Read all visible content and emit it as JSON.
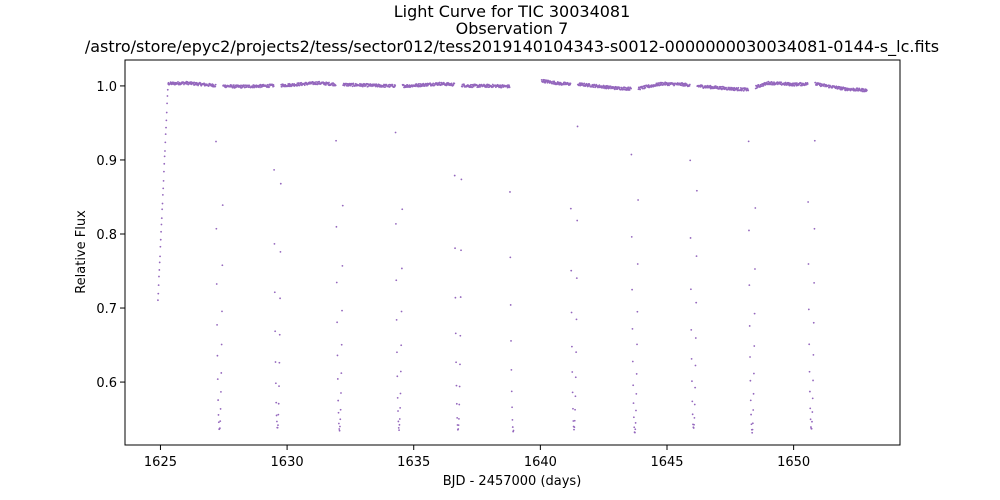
{
  "chart_data": {
    "type": "scatter",
    "title_lines": [
      "Light Curve for TIC 30034081",
      "Observation 7",
      "/astro/store/epyc2/projects2/tess/sector012/tess2019140104343-s0012-0000000030034081-0144-s_lc.fits"
    ],
    "xlabel": "BJD - 2457000 (days)",
    "ylabel": "Relative Flux",
    "xlim": [
      1623.6,
      1654.2
    ],
    "ylim": [
      0.515,
      1.035
    ],
    "xticks": [
      1625,
      1630,
      1635,
      1640,
      1645,
      1650
    ],
    "yticks": [
      0.6,
      0.7,
      0.8,
      0.9,
      1.0
    ],
    "xtick_labels": [
      "1625",
      "1630",
      "1635",
      "1640",
      "1645",
      "1650"
    ],
    "ytick_labels": [
      "0.6",
      "0.7",
      "0.8",
      "0.9",
      "1.0"
    ],
    "marker_color": "#9467bd",
    "grid": false,
    "series": [
      {
        "segments": [
          {
            "x_range": [
              1624.9,
              1638.95
            ],
            "baseline": [
              [
                1624.9,
                0.71
              ],
              [
                1625.3,
                1.003
              ],
              [
                1626.0,
                1.004
              ],
              [
                1627.0,
                1.001
              ],
              [
                1628.0,
                0.999
              ],
              [
                1629.2,
                1.0
              ],
              [
                1630.0,
                1.001
              ],
              [
                1631.2,
                1.004
              ],
              [
                1632.0,
                1.002
              ],
              [
                1633.0,
                1.001
              ],
              [
                1634.0,
                1.0
              ],
              [
                1634.8,
                1.0
              ],
              [
                1636.0,
                1.003
              ],
              [
                1636.5,
                1.002
              ],
              [
                1637.2,
                1.0
              ],
              [
                1638.2,
                1.0
              ],
              [
                1638.95,
                0.999
              ]
            ]
          },
          {
            "x_range": [
              1640.05,
              1652.9
            ],
            "baseline": [
              [
                1640.05,
                1.007
              ],
              [
                1640.8,
                1.003
              ],
              [
                1641.6,
                1.002
              ],
              [
                1643.0,
                0.997
              ],
              [
                1643.8,
                0.996
              ],
              [
                1644.8,
                1.003
              ],
              [
                1645.6,
                1.002
              ],
              [
                1646.5,
                0.999
              ],
              [
                1647.6,
                0.996
              ],
              [
                1648.2,
                0.995
              ],
              [
                1649.0,
                1.004
              ],
              [
                1650.0,
                1.002
              ],
              [
                1650.8,
                1.003
              ],
              [
                1652.0,
                0.996
              ],
              [
                1652.9,
                0.994
              ]
            ]
          }
        ],
        "eclipses": [
          {
            "center": 1627.33,
            "depth": 0.535
          },
          {
            "center": 1629.62,
            "depth": 0.538
          },
          {
            "center": 1632.07,
            "depth": 0.535
          },
          {
            "center": 1634.42,
            "depth": 0.537
          },
          {
            "center": 1636.75,
            "depth": 0.535
          },
          {
            "center": 1638.93,
            "depth": 0.533
          },
          {
            "center": 1641.33,
            "depth": 0.537
          },
          {
            "center": 1643.73,
            "depth": 0.532
          },
          {
            "center": 1646.05,
            "depth": 0.537
          },
          {
            "center": 1648.36,
            "depth": 0.533
          },
          {
            "center": 1650.7,
            "depth": 0.537
          }
        ],
        "eclipse_halfwidth_days": 0.14,
        "cadence_days": 0.0139
      }
    ]
  }
}
